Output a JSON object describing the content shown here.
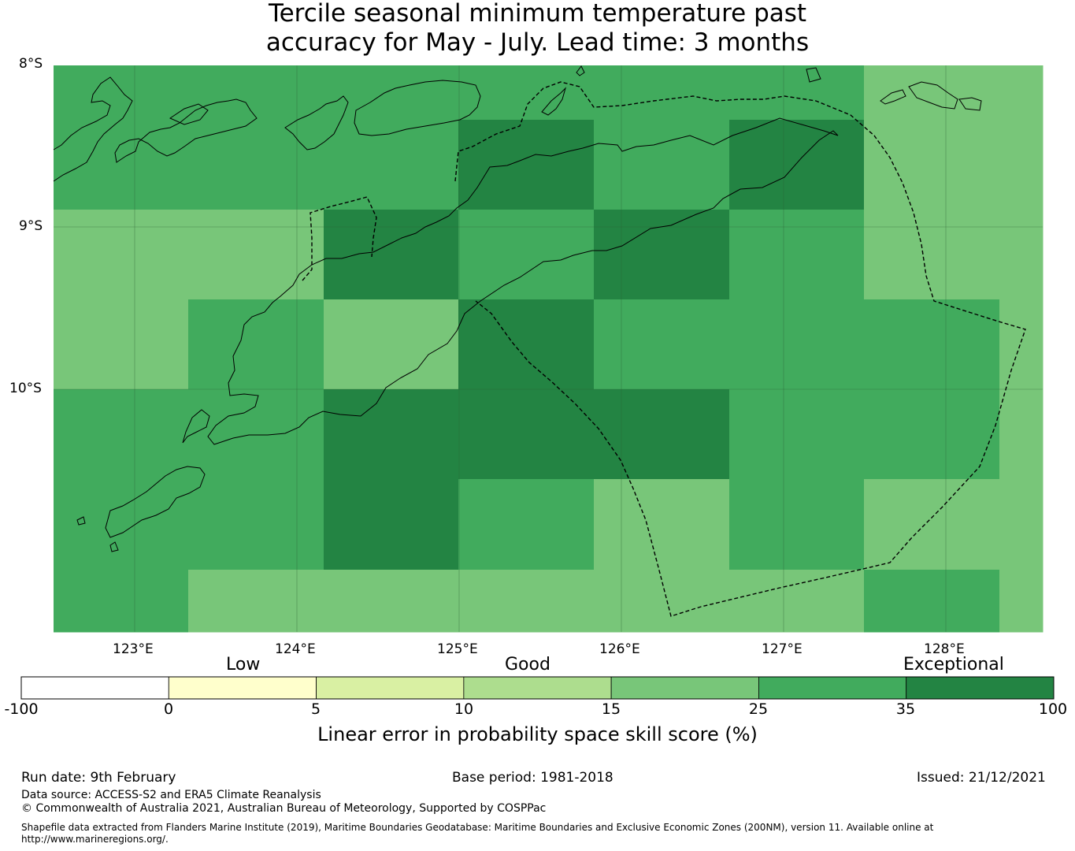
{
  "title": {
    "line1": "Tercile seasonal minimum temperature past",
    "line2": "accuracy for May - July. Lead time: 3 months"
  },
  "map": {
    "lat_labels": [
      "8°S",
      "9°S",
      "10°S"
    ],
    "lon_labels": [
      "123°E",
      "124°E",
      "125°E",
      "126°E",
      "127°E",
      "128°E"
    ],
    "ocean_color": "#ffffff",
    "grid": {
      "rows": [
        [
          "mid",
          "mid",
          "mid",
          "mid",
          "mid",
          "mid",
          "light",
          "light"
        ],
        [
          "mid",
          "mid",
          "mid",
          "dark",
          "mid",
          "dark",
          "light",
          "light"
        ],
        [
          "light",
          "light",
          "dark",
          "mid",
          "dark",
          "mid",
          "light",
          "light"
        ],
        [
          "light",
          "mid",
          "light",
          "dark",
          "mid",
          "mid",
          "mid",
          "light"
        ],
        [
          "mid",
          "mid",
          "dark",
          "dark",
          "dark",
          "mid",
          "mid",
          "light"
        ],
        [
          "mid",
          "mid",
          "dark",
          "mid",
          "light",
          "mid",
          "light",
          "light"
        ],
        [
          "mid",
          "light",
          "light",
          "light",
          "light",
          "light",
          "mid",
          "light"
        ]
      ]
    }
  },
  "legend": {
    "categories": [
      "Low",
      "Good",
      "Exceptional"
    ],
    "bins": [
      {
        "label": "-100",
        "color": "#ffffff"
      },
      {
        "label": "0",
        "color": "#ffffcc"
      },
      {
        "label": "5",
        "color": "#d9f0a3"
      },
      {
        "label": "10",
        "color": "#addd8e"
      },
      {
        "label": "15",
        "color": "#78c679"
      },
      {
        "label": "25",
        "color": "#41ab5d"
      },
      {
        "label": "35",
        "color": "#238443"
      }
    ],
    "end_label": "100",
    "title": "Linear error in probability space skill score (%)"
  },
  "colors": {
    "light": "#78c679",
    "mid": "#41ab5d",
    "dark": "#238443"
  },
  "footer": {
    "run_date": "Run date: 9th February",
    "base_period": "Base period: 1981-2018",
    "issued": "Issued: 21/12/2021",
    "data_source": "Data source: ACCESS-S2 and ERA5 Climate Reanalysis",
    "copyright": "© Commonwealth of Australia 2021, Australian Bureau of Meteorology, Supported by COSPPac",
    "shapefile": "Shapefile data extracted from Flanders Marine Institute (2019), Maritime Boundaries Geodatabase: Maritime Boundaries and Exclusive Economic Zones (200NM), version 11. Available online at",
    "url": "http://www.marineregions.org/."
  }
}
